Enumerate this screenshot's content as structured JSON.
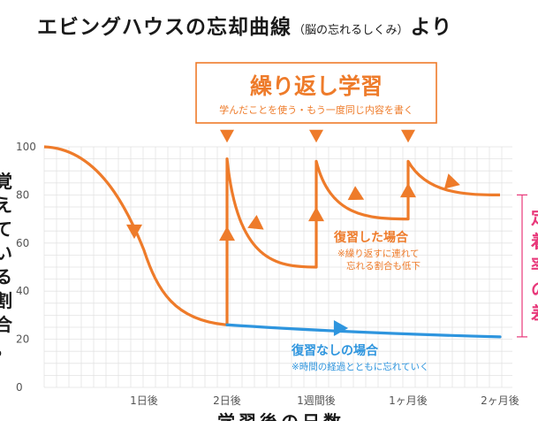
{
  "title": {
    "main": "エビングハウスの忘却曲線",
    "paren": "（脳の忘れるしくみ）",
    "suffix": "より"
  },
  "callout": {
    "title": "繰り返し学習",
    "subtitle": "学んだことを使う・もう一度同じ内容を書く"
  },
  "labels": {
    "review": "復習した場合",
    "review_note_1": "※繰り返すに連れて",
    "review_note_2": "忘れる割合も低下",
    "no_review": "復習なしの場合",
    "no_review_note": "※時間の経過とともに忘れていく"
  },
  "ylabel_glyphs": [
    "覚",
    "え",
    "て",
    "い",
    "る",
    "割",
    "合",
    "。"
  ],
  "xlabel": "学習後の日数",
  "right_label_glyphs": [
    "定",
    "着",
    "率",
    "の",
    "差"
  ],
  "colors": {
    "review": "#ee7b2a",
    "no_review": "#2e95de",
    "bracket": "#e8387a",
    "grid": "#e3e3e3"
  },
  "chart_data": {
    "type": "line",
    "categories": [
      "1日後",
      "2日後",
      "1週間後",
      "1ヶ月後",
      "2ヶ月後"
    ],
    "ylim": [
      0,
      100
    ],
    "yticks": [
      0,
      20,
      40,
      60,
      80,
      100
    ],
    "grid": true,
    "series": [
      {
        "name": "復習した場合",
        "color": "#ee7b2a",
        "points": [
          {
            "x": "start",
            "y": 100
          },
          {
            "x": "1日後",
            "y": 57
          },
          {
            "x": "2日後",
            "y": 26
          },
          {
            "x": "2日後",
            "y": 95
          },
          {
            "x": "1週間後",
            "y": 50
          },
          {
            "x": "1週間後",
            "y": 94
          },
          {
            "x": "1ヶ月後",
            "y": 70
          },
          {
            "x": "1ヶ月後",
            "y": 94
          },
          {
            "x": "2ヶ月後",
            "y": 80
          }
        ]
      },
      {
        "name": "復習なしの場合",
        "color": "#2e95de",
        "points": [
          {
            "x": "2日後",
            "y": 26
          },
          {
            "x": "1週間後",
            "y": 23.5
          },
          {
            "x": "1ヶ月後",
            "y": 22
          },
          {
            "x": "2ヶ月後",
            "y": 21
          }
        ]
      }
    ]
  }
}
